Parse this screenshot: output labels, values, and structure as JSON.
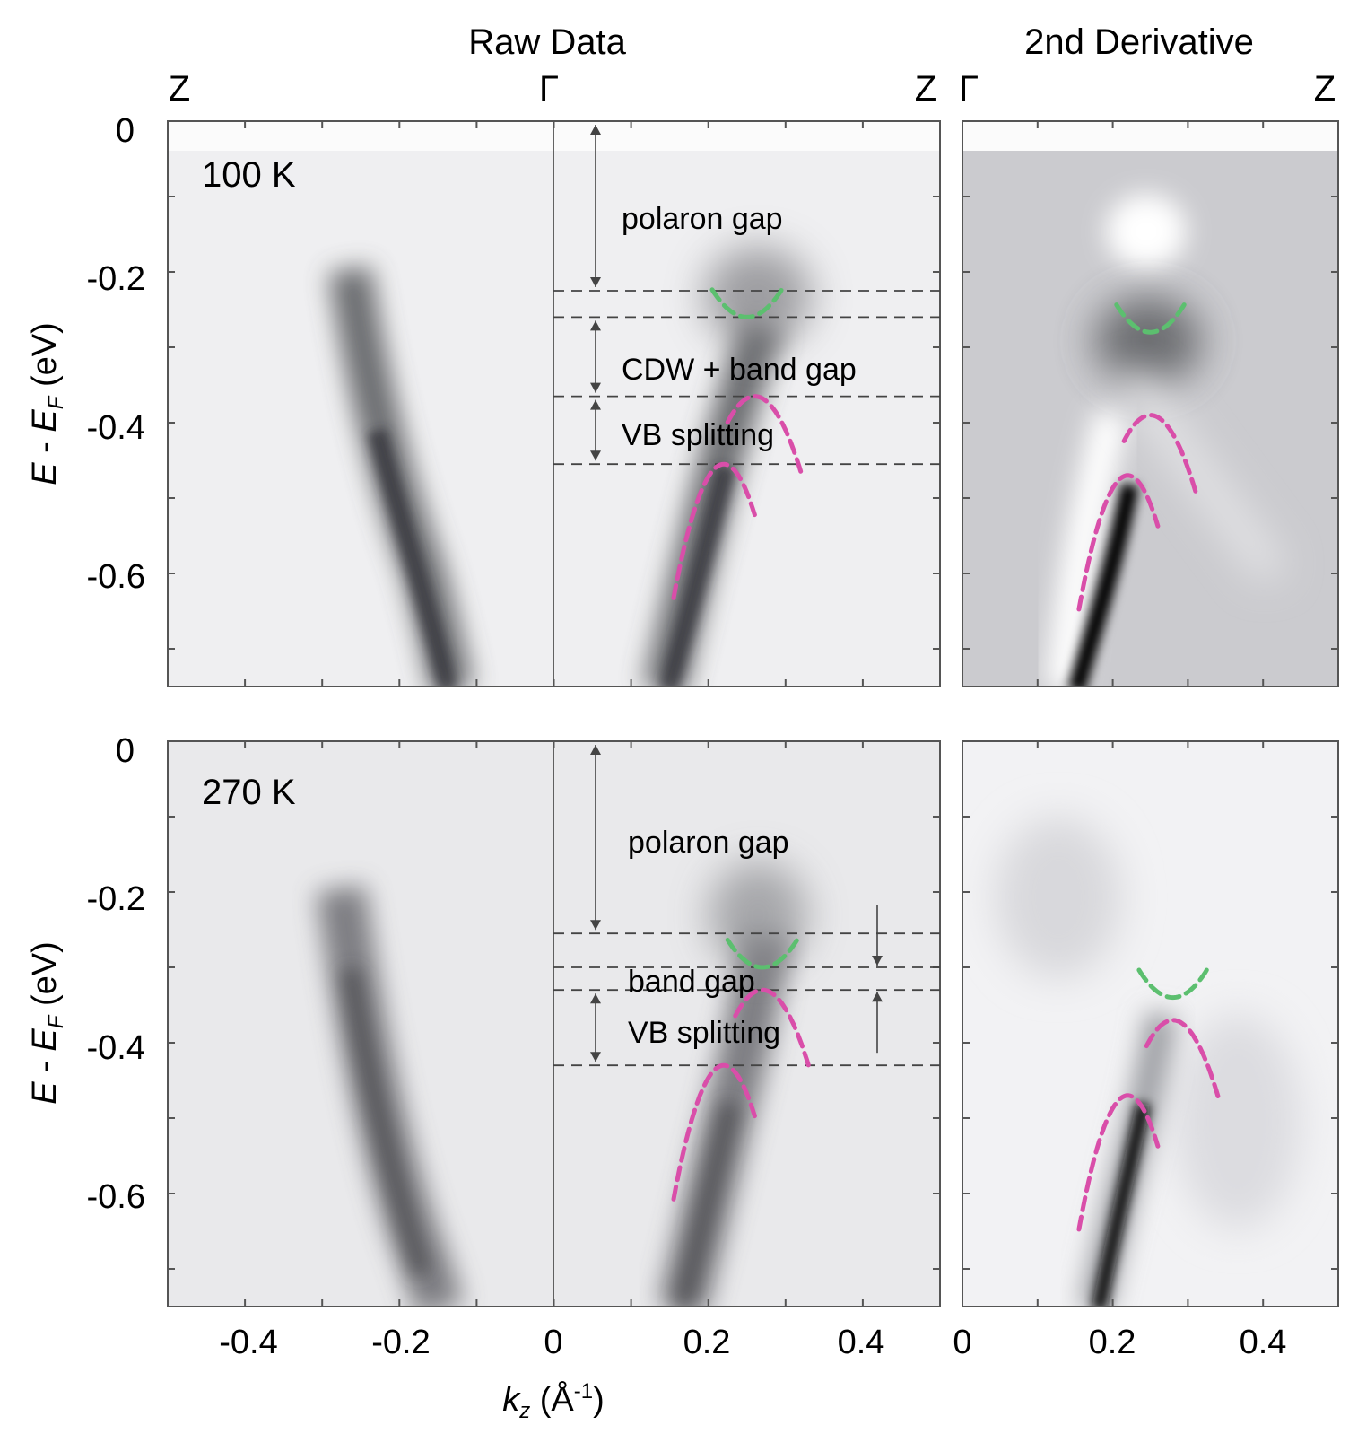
{
  "headers": {
    "raw": "Raw Data",
    "deriv": "2nd Derivative"
  },
  "kpoints": {
    "z": "Z",
    "gamma": "Γ"
  },
  "axes": {
    "ylabel_E": "E",
    "ylabel_mid": " - ",
    "ylabel_EF": "E",
    "ylabel_F": "F",
    "ylabel_unit": " (eV)",
    "xlabel_k": "k",
    "xlabel_z": "z",
    "xlabel_unit_pre": " (Å",
    "xlabel_sup": "-1",
    "xlabel_unit_post": ")",
    "yticks": [
      "0",
      "-0.2",
      "-0.4",
      "-0.6"
    ],
    "xticks_raw": [
      "-0.4",
      "-0.2",
      "0",
      "0.2",
      "0.4"
    ],
    "xticks_deriv": [
      "0",
      "0.2",
      "0.4"
    ]
  },
  "colors": {
    "green": "#5cbf6f",
    "magenta": "#d94ea9",
    "frame": "#555555",
    "guide": "#444444"
  },
  "chart_data": [
    {
      "type": "heatmap",
      "panel": "Raw Data",
      "temperature": "100 K",
      "xlim": [
        -0.5,
        0.5
      ],
      "ylim": [
        -0.75,
        0.0
      ],
      "path": "Z - Γ - Z",
      "annotations": [
        {
          "text": "polaron gap",
          "from": 0.0,
          "to": -0.225
        },
        {
          "text": "CDW + band gap",
          "from": -0.26,
          "to": -0.365
        },
        {
          "text": "VB splitting",
          "from": -0.365,
          "to": -0.455
        }
      ],
      "dashed_lines": [
        -0.225,
        -0.26,
        -0.365,
        -0.455
      ],
      "fits": [
        {
          "color": "green",
          "kind": "conduction",
          "vertex": [
            0.25,
            -0.26
          ]
        },
        {
          "color": "magenta",
          "kind": "valence",
          "vertex": [
            0.26,
            -0.365
          ]
        },
        {
          "color": "magenta",
          "kind": "valence",
          "vertex": [
            0.22,
            -0.455
          ]
        }
      ]
    },
    {
      "type": "heatmap",
      "panel": "2nd Derivative",
      "temperature": "100 K",
      "xlim": [
        0,
        0.5
      ],
      "ylim": [
        -0.75,
        0.0
      ],
      "path": "Γ - Z",
      "fits": [
        {
          "color": "green",
          "kind": "conduction",
          "vertex": [
            0.25,
            -0.28
          ]
        },
        {
          "color": "magenta",
          "kind": "valence",
          "vertex": [
            0.25,
            -0.39
          ]
        },
        {
          "color": "magenta",
          "kind": "valence",
          "vertex": [
            0.22,
            -0.47
          ]
        }
      ]
    },
    {
      "type": "heatmap",
      "panel": "Raw Data",
      "temperature": "270 K",
      "xlim": [
        -0.5,
        0.5
      ],
      "ylim": [
        -0.75,
        0.0
      ],
      "path": "Z - Γ - Z",
      "annotations": [
        {
          "text": "polaron gap",
          "from": 0.0,
          "to": -0.255
        },
        {
          "text": "band gap",
          "from": -0.255,
          "to": -0.3
        },
        {
          "text": "VB splitting",
          "from": -0.33,
          "to": -0.43
        }
      ],
      "dashed_lines": [
        -0.255,
        -0.3,
        -0.33,
        -0.43
      ],
      "fits": [
        {
          "color": "green",
          "kind": "conduction",
          "vertex": [
            0.27,
            -0.3
          ]
        },
        {
          "color": "magenta",
          "kind": "valence",
          "vertex": [
            0.27,
            -0.33
          ]
        },
        {
          "color": "magenta",
          "kind": "valence",
          "vertex": [
            0.22,
            -0.43
          ]
        }
      ]
    },
    {
      "type": "heatmap",
      "panel": "2nd Derivative",
      "temperature": "270 K",
      "xlim": [
        0,
        0.5
      ],
      "ylim": [
        -0.75,
        0.0
      ],
      "path": "Γ - Z",
      "fits": [
        {
          "color": "green",
          "kind": "conduction",
          "vertex": [
            0.28,
            -0.34
          ]
        },
        {
          "color": "magenta",
          "kind": "valence",
          "vertex": [
            0.28,
            -0.37
          ]
        },
        {
          "color": "magenta",
          "kind": "valence",
          "vertex": [
            0.22,
            -0.47
          ]
        }
      ]
    }
  ]
}
